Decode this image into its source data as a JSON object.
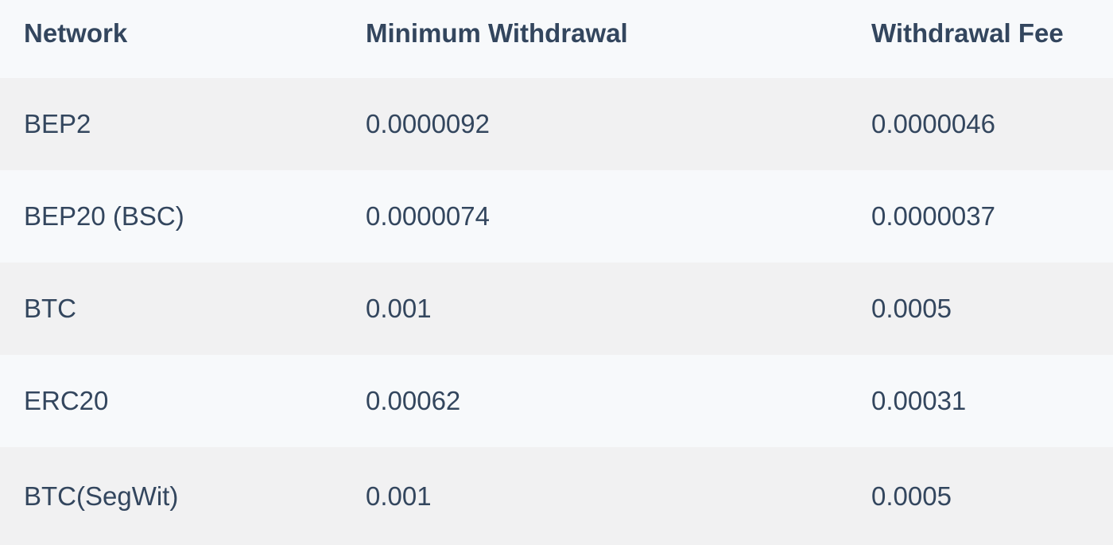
{
  "table": {
    "headers": [
      "Network",
      "Minimum Withdrawal",
      "Withdrawal Fee"
    ],
    "rows": [
      [
        "BEP2",
        "0.0000092",
        "0.0000046"
      ],
      [
        "BEP20 (BSC)",
        "0.0000074",
        "0.0000037"
      ],
      [
        "BTC",
        "0.001",
        "0.0005"
      ],
      [
        "ERC20",
        "0.00062",
        "0.00031"
      ],
      [
        "BTC(SegWit)",
        "0.001",
        "0.0005"
      ]
    ]
  },
  "colors": {
    "text": "#33465e",
    "row_odd": "#f1f1f2",
    "row_even": "#f7f9fb"
  }
}
